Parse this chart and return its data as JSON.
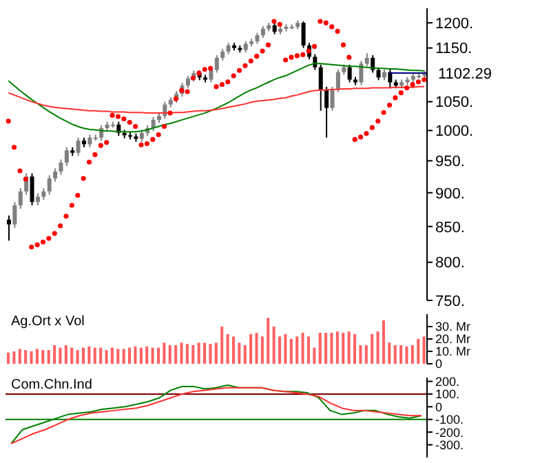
{
  "chart_data": [
    {
      "type": "candlestick",
      "log": true,
      "colors": [
        "#000000",
        "#808080",
        "#808080",
        "#808080",
        "#000000",
        "#808080",
        "#808080",
        "#808080",
        "#808080",
        "#808080",
        "#808080",
        "#000000",
        "#808080",
        "#000000",
        "#808080",
        "#808080",
        "#808080",
        "#808080",
        "#808080",
        "#000000",
        "#000000",
        "#000000",
        "#000000",
        "#808080",
        "#808080",
        "#808080",
        "#808080",
        "#808080",
        "#808080",
        "#808080",
        "#808080",
        "#808080",
        "#808080",
        "#000000",
        "#000000",
        "#808080",
        "#808080",
        "#808080",
        "#808080",
        "#000000",
        "#000000",
        "#808080",
        "#808080",
        "#808080",
        "#808080",
        "#808080",
        "#000000",
        "#808080",
        "#808080",
        "#808080",
        "#808080",
        "#000000",
        "#000000",
        "#000000",
        "#000000",
        "#000000",
        "#808080",
        "#808080",
        "#808080",
        "#000000",
        "#000000",
        "#808080",
        "#808080",
        "#000000",
        "#000000",
        "#808080",
        "#000000",
        "#000000",
        "#808080",
        "#808080",
        "#808080",
        "#808080",
        "#808080"
      ],
      "tick_labels": "y",
      "ylim": [
        750,
        1230
      ],
      "yticks": [
        {
          "value": 750,
          "label": "750."
        },
        {
          "value": 800,
          "label": "800."
        },
        {
          "value": 850,
          "label": "850."
        },
        {
          "value": 900,
          "label": "900."
        },
        {
          "value": 950,
          "label": "950."
        },
        {
          "value": 1000,
          "label": "1000."
        },
        {
          "value": 1050,
          "label": "1050."
        },
        {
          "value": 1150,
          "label": "1150."
        },
        {
          "value": 1200,
          "label": "1200."
        }
      ],
      "ref_lines": [
        {
          "axis": "y",
          "value": 1102.29,
          "label": "1102.29",
          "color": "#000080"
        }
      ],
      "categories": [
        null,
        null,
        null,
        null,
        null,
        null,
        null,
        null,
        null,
        null,
        null,
        null,
        null,
        null,
        null,
        null,
        null,
        null,
        null,
        null,
        null,
        null,
        null,
        null,
        null,
        null,
        null,
        null,
        null,
        null,
        null,
        null,
        null,
        null,
        null,
        null,
        null,
        null,
        null,
        null,
        null,
        null,
        null,
        null,
        null,
        null,
        null,
        null,
        null,
        null,
        null,
        null,
        null,
        null,
        null,
        null,
        null,
        null,
        null,
        null,
        null,
        null,
        null,
        null,
        null,
        null,
        null,
        null,
        null,
        null,
        null,
        null,
        null
      ],
      "ohlc": [
        [
          860,
          866,
          830,
          853
        ],
        [
          853,
          886,
          848,
          881
        ],
        [
          881,
          907,
          876,
          902
        ],
        [
          902,
          930,
          897,
          925
        ],
        [
          925,
          930,
          881,
          886
        ],
        [
          886,
          899,
          881,
          894
        ],
        [
          894,
          907,
          889,
          902
        ],
        [
          902,
          927,
          897,
          922
        ],
        [
          922,
          938,
          917,
          933
        ],
        [
          933,
          952,
          928,
          947
        ],
        [
          947,
          972,
          942,
          967
        ],
        [
          967,
          972,
          958,
          963
        ],
        [
          963,
          988,
          958,
          983
        ],
        [
          983,
          988,
          972,
          977
        ],
        [
          977,
          993,
          972,
          988
        ],
        [
          988,
          993,
          983,
          988
        ],
        [
          988,
          1009,
          983,
          1004
        ],
        [
          1004,
          1015,
          999,
          1010
        ],
        [
          1010,
          1015,
          1005,
          1010
        ],
        [
          1010,
          1015,
          991,
          996
        ],
        [
          996,
          1001,
          987,
          992
        ],
        [
          992,
          997,
          985,
          990
        ],
        [
          990,
          995,
          981,
          986
        ],
        [
          986,
          1001,
          981,
          996
        ],
        [
          996,
          1009,
          991,
          1004
        ],
        [
          1004,
          1023,
          999,
          1018
        ],
        [
          1018,
          1030,
          1013,
          1025
        ],
        [
          1025,
          1050,
          1020,
          1045
        ],
        [
          1045,
          1058,
          1040,
          1053
        ],
        [
          1053,
          1069,
          1048,
          1064
        ],
        [
          1064,
          1084,
          1059,
          1079
        ],
        [
          1079,
          1097,
          1074,
          1092
        ],
        [
          1092,
          1107,
          1087,
          1102
        ],
        [
          1102,
          1107,
          1089,
          1094
        ],
        [
          1094,
          1099,
          1085,
          1090
        ],
        [
          1090,
          1113,
          1085,
          1108
        ],
        [
          1108,
          1136,
          1103,
          1131
        ],
        [
          1131,
          1148,
          1126,
          1143
        ],
        [
          1143,
          1160,
          1138,
          1155
        ],
        [
          1155,
          1160,
          1145,
          1150
        ],
        [
          1150,
          1155,
          1141,
          1146
        ],
        [
          1146,
          1163,
          1141,
          1158
        ],
        [
          1158,
          1168,
          1153,
          1163
        ],
        [
          1163,
          1180,
          1158,
          1175
        ],
        [
          1175,
          1193,
          1170,
          1188
        ],
        [
          1188,
          1200,
          1183,
          1195
        ],
        [
          1195,
          1200,
          1177,
          1182
        ],
        [
          1182,
          1193,
          1177,
          1188
        ],
        [
          1188,
          1197,
          1183,
          1192
        ],
        [
          1192,
          1197,
          1187,
          1192
        ],
        [
          1192,
          1205,
          1187,
          1200
        ],
        [
          1200,
          1203,
          1150,
          1155
        ],
        [
          1155,
          1160,
          1128,
          1133
        ],
        [
          1133,
          1138,
          1108,
          1113
        ],
        [
          1113,
          1118,
          1034,
          1072
        ],
        [
          1072,
          1077,
          988,
          1039
        ],
        [
          1039,
          1077,
          1034,
          1072
        ],
        [
          1072,
          1109,
          1067,
          1104
        ],
        [
          1104,
          1118,
          1099,
          1113
        ],
        [
          1113,
          1118,
          1085,
          1090
        ],
        [
          1090,
          1095,
          1080,
          1085
        ],
        [
          1085,
          1125,
          1080,
          1120
        ],
        [
          1120,
          1140,
          1115,
          1131
        ],
        [
          1131,
          1136,
          1103,
          1108
        ],
        [
          1108,
          1113,
          1089,
          1094
        ],
        [
          1094,
          1109,
          1089,
          1104
        ],
        [
          1104,
          1109,
          1074,
          1085
        ],
        [
          1085,
          1090,
          1074,
          1079
        ],
        [
          1079,
          1090,
          1074,
          1085
        ],
        [
          1085,
          1095,
          1080,
          1090
        ],
        [
          1090,
          1102,
          1085,
          1097
        ],
        [
          1097,
          1102,
          1092,
          1097
        ],
        [
          1097,
          1107,
          1092,
          1102
        ]
      ],
      "series": [
        {
          "type": "line",
          "color": "#008000",
          "values": [
            1088,
            1079,
            1070,
            1062,
            1054,
            1047,
            1040,
            1033,
            1027,
            1021,
            1016,
            1011,
            1007,
            1004,
            1002,
            1001,
            1000,
            999,
            999,
            998,
            998,
            998,
            998,
            999,
            1001,
            1004,
            1007,
            1010,
            1012,
            1015,
            1018,
            1021,
            1024,
            1027,
            1030,
            1034,
            1038,
            1043,
            1048,
            1054,
            1060,
            1066,
            1071,
            1075,
            1080,
            1085,
            1090,
            1094,
            1097,
            1102,
            1107,
            1112,
            1117,
            1120,
            1120,
            1119,
            1118,
            1117,
            1116,
            1115,
            1115,
            1114,
            1113,
            1112,
            1111,
            1111,
            1110,
            1110,
            1109,
            1108,
            1107,
            1107,
            1106
          ]
        },
        {
          "type": "line",
          "color": "#ff3030",
          "values": [
            1066,
            1062,
            1058,
            1054,
            1050,
            1047,
            1044,
            1042,
            1040,
            1039,
            1038,
            1037,
            1036,
            1035,
            1034,
            1034,
            1033,
            1033,
            1032,
            1032,
            1032,
            1031,
            1031,
            1031,
            1030,
            1030,
            1030,
            1030,
            1030,
            1031,
            1031,
            1032,
            1033,
            1034,
            1034,
            1035,
            1036,
            1038,
            1040,
            1042,
            1044,
            1046,
            1049,
            1051,
            1052,
            1053,
            1054,
            1056,
            1057,
            1060,
            1062,
            1065,
            1068,
            1070,
            1071,
            1071,
            1072,
            1072,
            1073,
            1073,
            1074,
            1074,
            1074,
            1075,
            1075,
            1075,
            1075,
            1076,
            1076,
            1076,
            1076,
            1077,
            1077
          ]
        },
        {
          "type": "scatter",
          "color": "#ff0000",
          "marker": "circle",
          "values": [
            1016,
            972,
            934,
            921,
            821,
            824,
            828,
            833,
            840,
            851,
            865,
            881,
            896,
            922,
            948,
            960,
            975,
            980,
            1026,
            1024,
            1020,
            1014,
            1007,
            976,
            978,
            985,
            993,
            1007,
            1030,
            1055,
            1070,
            1068,
            1093,
            1102,
            1109,
            1111,
            1077,
            1081,
            1086,
            1097,
            1107,
            1116,
            1125,
            1134,
            1144,
            1156,
            1203,
            1197,
            1127,
            1132,
            1135,
            1137,
            1144,
            1153,
            1203,
            1200,
            1192,
            1183,
            1156,
            1132,
            985,
            989,
            995,
            1005,
            1016,
            1031,
            1044,
            1057,
            1066,
            1075,
            1081,
            1086,
            1090
          ]
        }
      ]
    },
    {
      "type": "bar",
      "title": "Ag.Ort x Vol",
      "color": "#ff6060",
      "tick_labels": "y",
      "ylim": [
        0,
        40
      ],
      "yticks": [
        0,
        {
          "value": 10,
          "label": "10. Mr"
        },
        {
          "value": 20,
          "label": "20. Mr"
        },
        {
          "value": 30,
          "label": "30. Mr"
        }
      ],
      "categories": [
        null,
        null,
        null,
        null,
        null,
        null,
        null,
        null,
        null,
        null,
        null,
        null,
        null,
        null,
        null,
        null,
        null,
        null,
        null,
        null,
        null,
        null,
        null,
        null,
        null,
        null,
        null,
        null,
        null,
        null,
        null,
        null,
        null,
        null,
        null,
        null,
        null,
        null,
        null,
        null,
        null,
        null,
        null,
        null,
        null,
        null,
        null,
        null,
        null,
        null,
        null,
        null,
        null,
        null,
        null,
        null,
        null,
        null,
        null,
        null,
        null,
        null,
        null,
        null,
        null,
        null,
        null,
        null,
        null,
        null,
        null,
        null,
        null
      ],
      "values": [
        9,
        10,
        12,
        11,
        10,
        12,
        11,
        11,
        15,
        13,
        15,
        13,
        11,
        13,
        14,
        13,
        13,
        11,
        13,
        12,
        12,
        13,
        14,
        13,
        14,
        13,
        13,
        17,
        15,
        15,
        17,
        16,
        15,
        17,
        17,
        16,
        17,
        30,
        24,
        22,
        17,
        15,
        24,
        25,
        22,
        37,
        30,
        22,
        24,
        20,
        22,
        25,
        22,
        13,
        25,
        25,
        25,
        26,
        25,
        26,
        24,
        15,
        15,
        24,
        26,
        35,
        17,
        15,
        15,
        14,
        15,
        20,
        22
      ]
    },
    {
      "type": "line",
      "title": "Com.Chn.Ind",
      "tick_labels": "y",
      "ylim": [
        -400,
        230
      ],
      "yticks": [
        {
          "value": 200,
          "label": "200."
        },
        {
          "value": 100,
          "label": "100."
        },
        0,
        {
          "value": -100,
          "label": "-100."
        },
        {
          "value": -200,
          "label": "-200."
        },
        {
          "value": -300,
          "label": "-300."
        }
      ],
      "ref_lines": [
        {
          "axis": "y",
          "value": 100,
          "color": "#800000"
        },
        {
          "axis": "y",
          "value": -100,
          "color": "#008000"
        }
      ],
      "categories": [
        null,
        null,
        null,
        null,
        null,
        null,
        null,
        null,
        null,
        null,
        null,
        null,
        null,
        null,
        null,
        null,
        null,
        null,
        null,
        null,
        null,
        null,
        null,
        null,
        null,
        null,
        null,
        null,
        null,
        null,
        null,
        null,
        null,
        null,
        null,
        null,
        null
      ],
      "series": [
        {
          "color": "#008000",
          "values": [
            -290,
            -180,
            -150,
            -120,
            -90,
            -60,
            -50,
            -40,
            -20,
            -10,
            0,
            20,
            40,
            70,
            130,
            160,
            160,
            140,
            150,
            170,
            150,
            150,
            150,
            130,
            120,
            120,
            110,
            70,
            -30,
            -60,
            -50,
            -30,
            -30,
            -60,
            -80,
            -90,
            -70
          ]
        },
        {
          "color": "#ff3030",
          "values": [
            -290,
            -250,
            -210,
            -180,
            -140,
            -100,
            -70,
            -50,
            -40,
            -30,
            -20,
            -10,
            10,
            40,
            70,
            100,
            120,
            130,
            140,
            150,
            150,
            150,
            150,
            130,
            120,
            110,
            100,
            80,
            30,
            -10,
            -30,
            -30,
            -40,
            -50,
            -60,
            -70,
            -70
          ]
        }
      ]
    }
  ]
}
